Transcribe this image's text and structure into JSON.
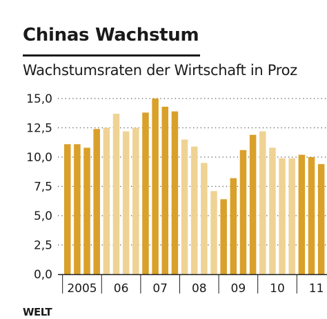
{
  "title": "Chinas Wachstum",
  "subtitle": "Wachstumsraten der Wirtschaft in Proz",
  "brand": "WELT",
  "colors": {
    "dark_bar": "#D9A02A",
    "light_bar": "#EFD394",
    "grid": "#555555",
    "text": "#1a1a1a"
  },
  "chart_data": {
    "type": "bar",
    "ylim": [
      0,
      15
    ],
    "yticks": [
      "0,0",
      "2,5",
      "5,0",
      "7,5",
      "10,0",
      "12,5",
      "15,0"
    ],
    "ytick_values": [
      0,
      2.5,
      5,
      7.5,
      10,
      12.5,
      15
    ],
    "x_labels": [
      "2005",
      "06",
      "07",
      "08",
      "09",
      "10",
      "11"
    ],
    "grid": true,
    "values": [
      11.1,
      11.1,
      10.8,
      12.4,
      12.5,
      13.7,
      12.2,
      12.5,
      13.8,
      15.0,
      14.3,
      13.9,
      11.5,
      10.9,
      9.5,
      7.1,
      6.4,
      8.2,
      10.6,
      11.9,
      12.2,
      10.8,
      9.9,
      9.9,
      10.2,
      10.0,
      9.4
    ],
    "shades": [
      "dark",
      "dark",
      "dark",
      "dark",
      "light",
      "light",
      "light",
      "light",
      "dark",
      "dark",
      "dark",
      "dark",
      "light",
      "light",
      "light",
      "light",
      "dark",
      "dark",
      "dark",
      "dark",
      "light",
      "light",
      "light",
      "light",
      "dark",
      "dark",
      "dark"
    ]
  }
}
